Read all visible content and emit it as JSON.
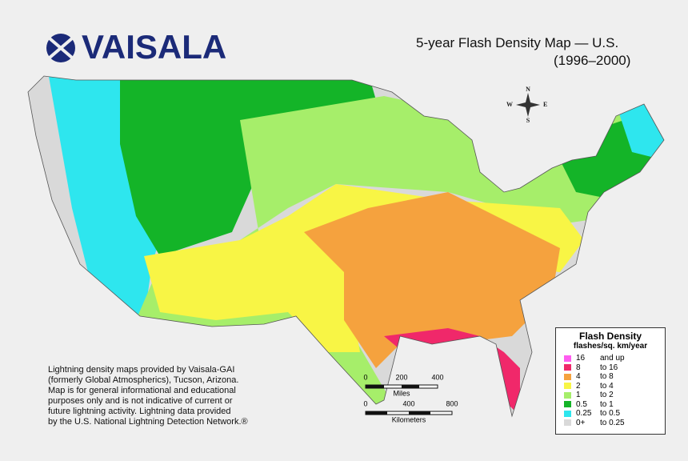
{
  "logo": {
    "text": "VAISALA"
  },
  "header": {
    "title": "5-year Flash Density Map — U.S.",
    "subtitle": "(1996–2000)"
  },
  "compass": {
    "north": "N",
    "south": "S",
    "east": "E",
    "west": "W"
  },
  "legend": {
    "title": "Flash Density",
    "subtitle": "flashes/sq. km/year",
    "items": [
      {
        "from": "16",
        "to": "and up",
        "color": "#ff5cf0"
      },
      {
        "from": "8",
        "to": "to 16",
        "color": "#f0286a"
      },
      {
        "from": "4",
        "to": "to 8",
        "color": "#f5a23e"
      },
      {
        "from": "2",
        "to": "to 4",
        "color": "#f8f545"
      },
      {
        "from": "1",
        "to": "to 2",
        "color": "#a6ee6a"
      },
      {
        "from": "0.5",
        "to": "to 1",
        "color": "#14b428"
      },
      {
        "from": "0.25",
        "to": "to 0.5",
        "color": "#2ee6ee"
      },
      {
        "from": "0+",
        "to": "to 0.25",
        "color": "#d9d9d9"
      }
    ]
  },
  "scale": {
    "miles": {
      "ticks": [
        "0",
        "200",
        "400"
      ],
      "label": "Miles"
    },
    "kilometers": {
      "ticks": [
        "0",
        "400",
        "800"
      ],
      "label": "Kilometers"
    }
  },
  "footnote": {
    "lines": [
      "Lightning density maps provided by Vaisala-GAI",
      "(formerly Global Atmospherics), Tucson, Arizona.",
      "Map is for general informational and educational",
      "purposes only and is not indicative of current or",
      "future lightning activity. Lightning data provided",
      "by the U.S. National Lightning Detection Network.®"
    ]
  }
}
